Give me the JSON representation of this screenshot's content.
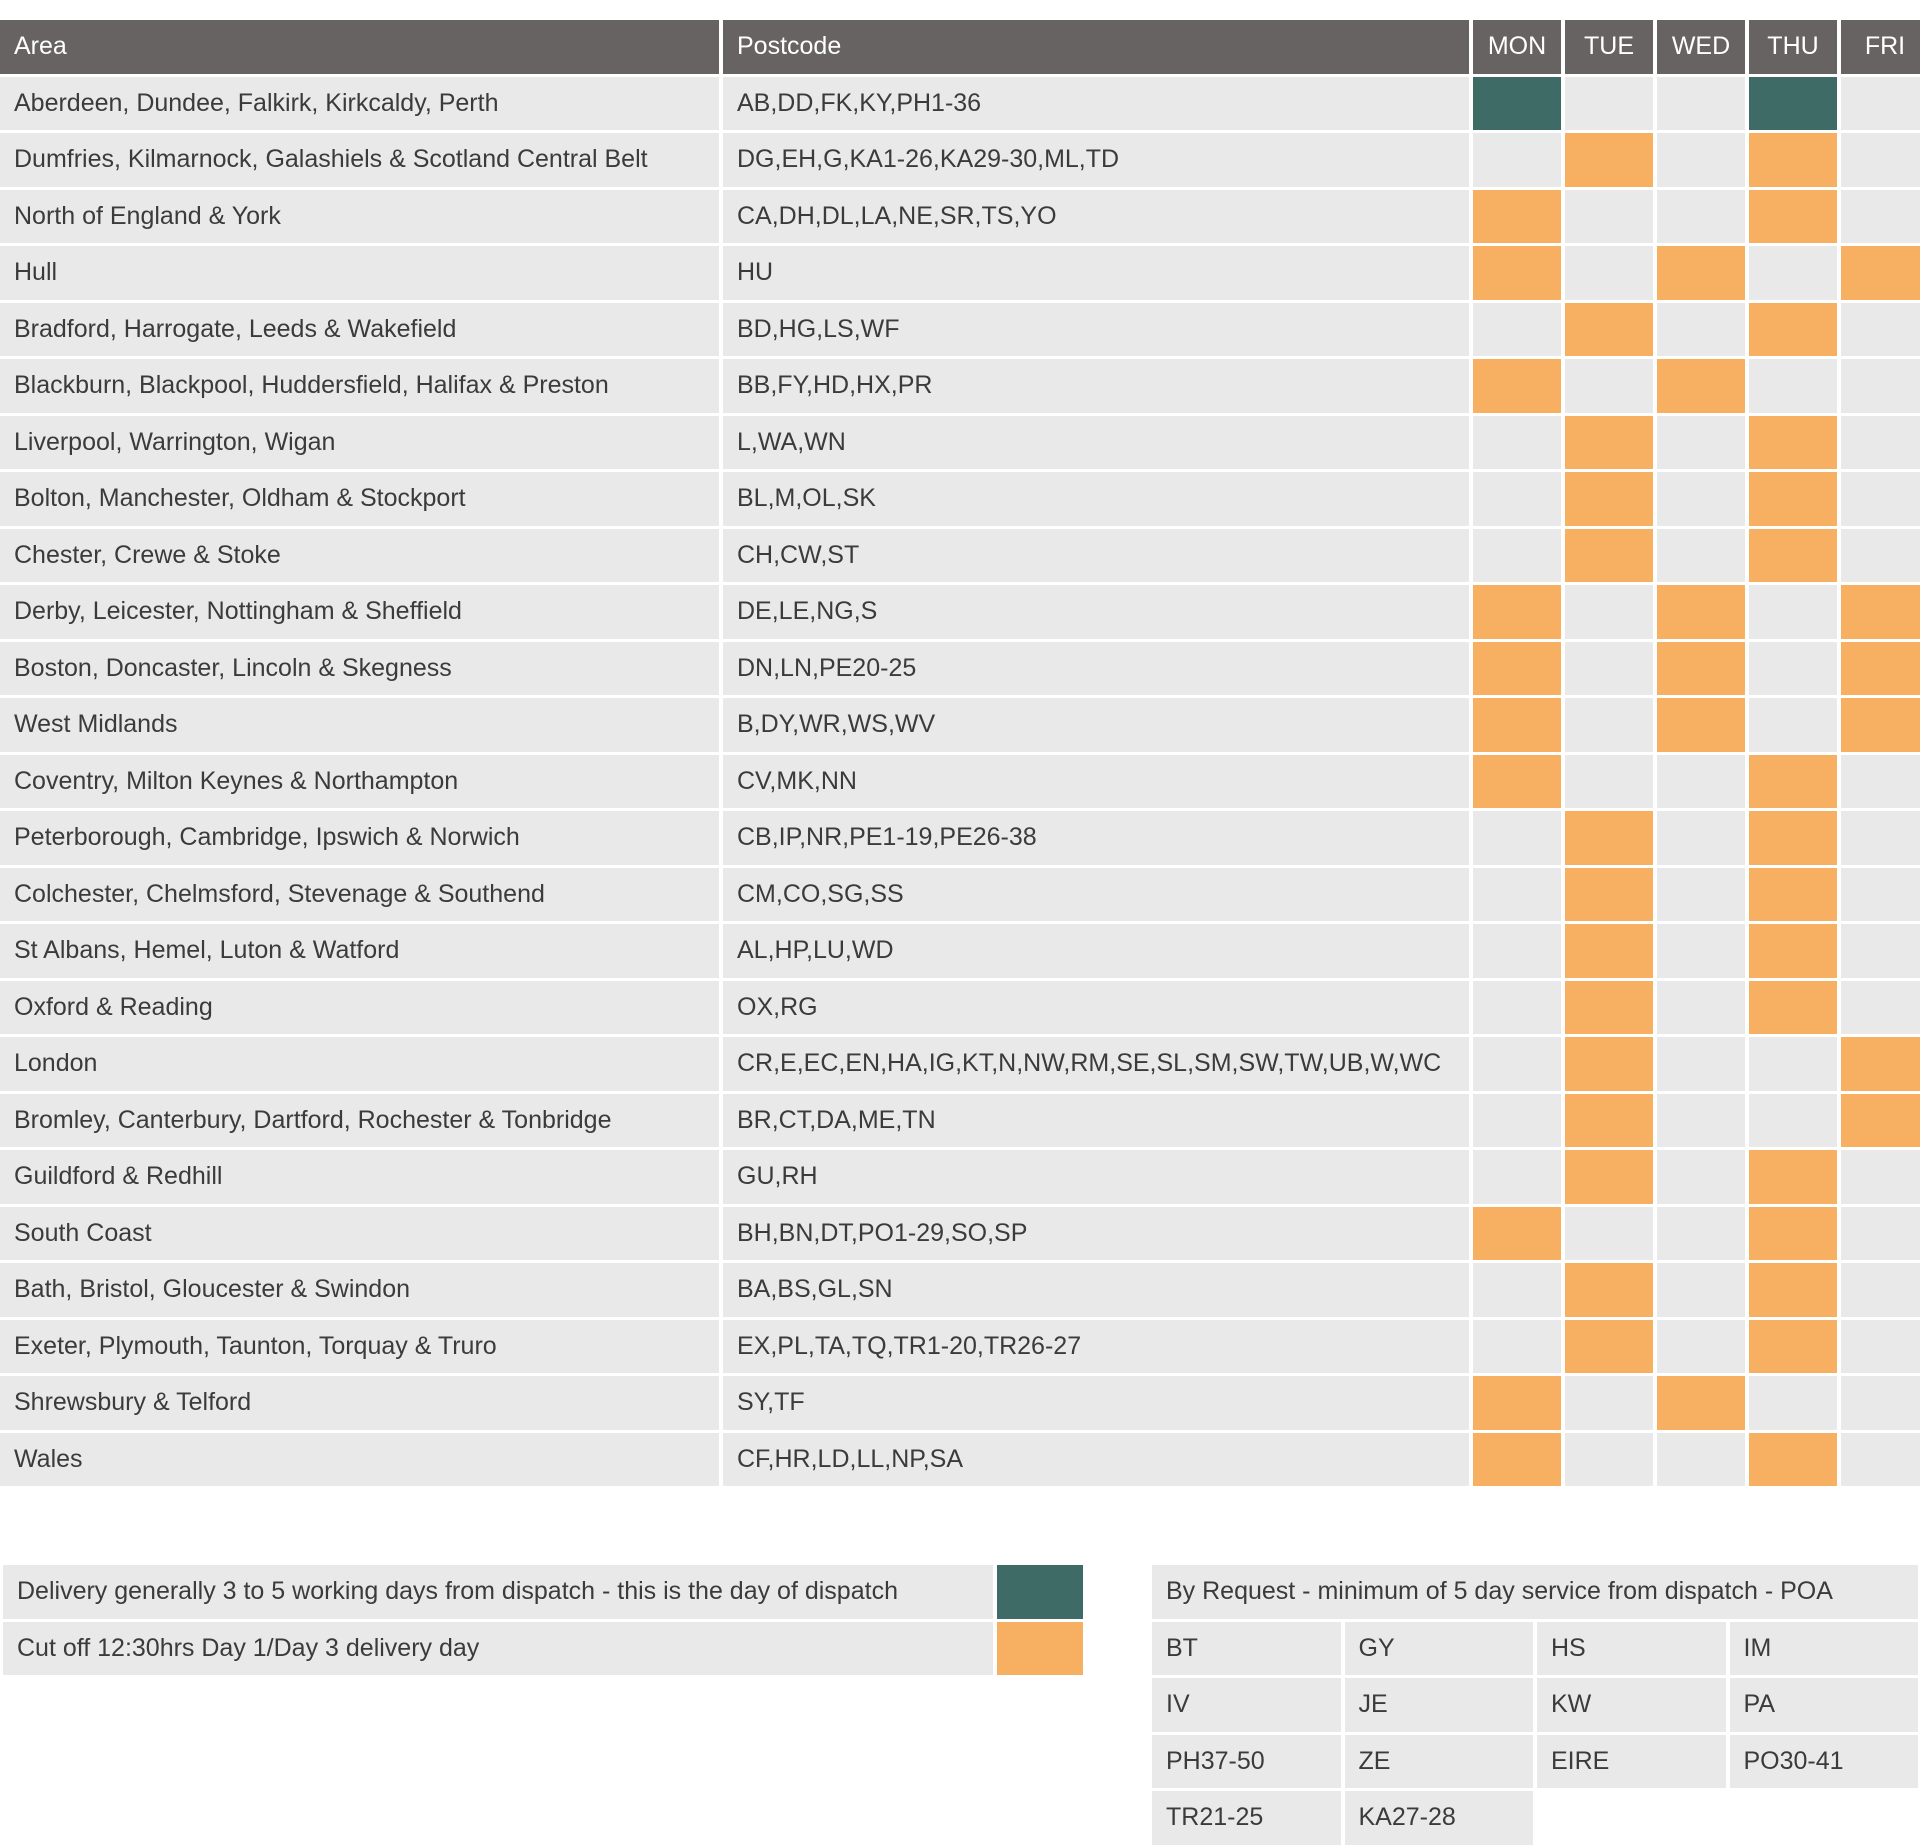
{
  "table": {
    "headers": {
      "area": "Area",
      "postcode": "Postcode",
      "days": [
        "MON",
        "TUE",
        "WED",
        "THU",
        "FRI"
      ]
    },
    "rows": [
      {
        "area": "Aberdeen, Dundee, Falkirk, Kirkcaldy, Perth",
        "postcode": "AB,DD,FK,KY,PH1-36",
        "days": [
          "dispatch",
          "",
          "",
          "dispatch",
          ""
        ]
      },
      {
        "area": "Dumfries, Kilmarnock, Galashiels & Scotland Central Belt",
        "postcode": "DG,EH,G,KA1-26,KA29-30,ML,TD",
        "days": [
          "",
          "delivery",
          "",
          "delivery",
          ""
        ]
      },
      {
        "area": "North of England & York",
        "postcode": "CA,DH,DL,LA,NE,SR,TS,YO",
        "days": [
          "delivery",
          "",
          "",
          "delivery",
          ""
        ]
      },
      {
        "area": "Hull",
        "postcode": "HU",
        "days": [
          "delivery",
          "",
          "delivery",
          "",
          "delivery"
        ]
      },
      {
        "area": "Bradford, Harrogate, Leeds & Wakefield",
        "postcode": "BD,HG,LS,WF",
        "days": [
          "",
          "delivery",
          "",
          "delivery",
          ""
        ]
      },
      {
        "area": "Blackburn, Blackpool, Huddersfield, Halifax & Preston",
        "postcode": "BB,FY,HD,HX,PR",
        "days": [
          "delivery",
          "",
          "delivery",
          "",
          ""
        ]
      },
      {
        "area": "Liverpool, Warrington, Wigan",
        "postcode": "L,WA,WN",
        "days": [
          "",
          "delivery",
          "",
          "delivery",
          ""
        ]
      },
      {
        "area": "Bolton, Manchester, Oldham & Stockport",
        "postcode": "BL,M,OL,SK",
        "days": [
          "",
          "delivery",
          "",
          "delivery",
          ""
        ]
      },
      {
        "area": "Chester, Crewe & Stoke",
        "postcode": "CH,CW,ST",
        "days": [
          "",
          "delivery",
          "",
          "delivery",
          ""
        ]
      },
      {
        "area": "Derby, Leicester, Nottingham & Sheffield",
        "postcode": "DE,LE,NG,S",
        "days": [
          "delivery",
          "",
          "delivery",
          "",
          "delivery"
        ]
      },
      {
        "area": "Boston, Doncaster, Lincoln & Skegness",
        "postcode": "DN,LN,PE20-25",
        "days": [
          "delivery",
          "",
          "delivery",
          "",
          "delivery"
        ]
      },
      {
        "area": "West Midlands",
        "postcode": "B,DY,WR,WS,WV",
        "days": [
          "delivery",
          "",
          "delivery",
          "",
          "delivery"
        ]
      },
      {
        "area": "Coventry, Milton Keynes & Northampton",
        "postcode": "CV,MK,NN",
        "days": [
          "delivery",
          "",
          "",
          "delivery",
          ""
        ]
      },
      {
        "area": "Peterborough, Cambridge, Ipswich & Norwich",
        "postcode": "CB,IP,NR,PE1-19,PE26-38",
        "days": [
          "",
          "delivery",
          "",
          "delivery",
          ""
        ]
      },
      {
        "area": "Colchester, Chelmsford, Stevenage & Southend",
        "postcode": "CM,CO,SG,SS",
        "days": [
          "",
          "delivery",
          "",
          "delivery",
          ""
        ]
      },
      {
        "area": "St Albans, Hemel, Luton & Watford",
        "postcode": "AL,HP,LU,WD",
        "days": [
          "",
          "delivery",
          "",
          "delivery",
          ""
        ]
      },
      {
        "area": "Oxford & Reading",
        "postcode": "OX,RG",
        "days": [
          "",
          "delivery",
          "",
          "delivery",
          ""
        ]
      },
      {
        "area": "London",
        "postcode": "CR,E,EC,EN,HA,IG,KT,N,NW,RM,SE,SL,SM,SW,TW,UB,W,WC",
        "days": [
          "",
          "delivery",
          "",
          "",
          "delivery"
        ]
      },
      {
        "area": "Bromley, Canterbury, Dartford, Rochester & Tonbridge",
        "postcode": "BR,CT,DA,ME,TN",
        "days": [
          "",
          "delivery",
          "",
          "",
          "delivery"
        ]
      },
      {
        "area": "Guildford & Redhill",
        "postcode": "GU,RH",
        "days": [
          "",
          "delivery",
          "",
          "delivery",
          ""
        ]
      },
      {
        "area": "South Coast",
        "postcode": "BH,BN,DT,PO1-29,SO,SP",
        "days": [
          "delivery",
          "",
          "",
          "delivery",
          ""
        ]
      },
      {
        "area": "Bath, Bristol, Gloucester & Swindon",
        "postcode": "BA,BS,GL,SN",
        "days": [
          "",
          "delivery",
          "",
          "delivery",
          ""
        ]
      },
      {
        "area": "Exeter, Plymouth, Taunton, Torquay & Truro",
        "postcode": "EX,PL,TA,TQ,TR1-20,TR26-27",
        "days": [
          "",
          "delivery",
          "",
          "delivery",
          ""
        ]
      },
      {
        "area": "Shrewsbury & Telford",
        "postcode": "SY,TF",
        "days": [
          "delivery",
          "",
          "delivery",
          "",
          ""
        ]
      },
      {
        "area": "Wales",
        "postcode": "CF,HR,LD,LL,NP,SA",
        "days": [
          "delivery",
          "",
          "",
          "delivery",
          ""
        ]
      }
    ]
  },
  "legend": {
    "dispatch_label": "Delivery generally 3 to 5 working days from dispatch - this is the day of dispatch",
    "delivery_label": "Cut off 12:30hrs Day 1/Day 3 delivery day"
  },
  "request": {
    "title": "By Request - minimum of 5 day service from dispatch - POA",
    "codes": [
      "BT",
      "GY",
      "HS",
      "IM",
      "IV",
      "JE",
      "KW",
      "PA",
      "PH37-50",
      "ZE",
      "EIRE",
      "PO30-41",
      "TR21-25",
      "KA27-28"
    ]
  },
  "colors": {
    "header": "#676363",
    "dispatch": "#3e6b66",
    "delivery": "#f7b061",
    "cell": "#e9e9e9"
  }
}
